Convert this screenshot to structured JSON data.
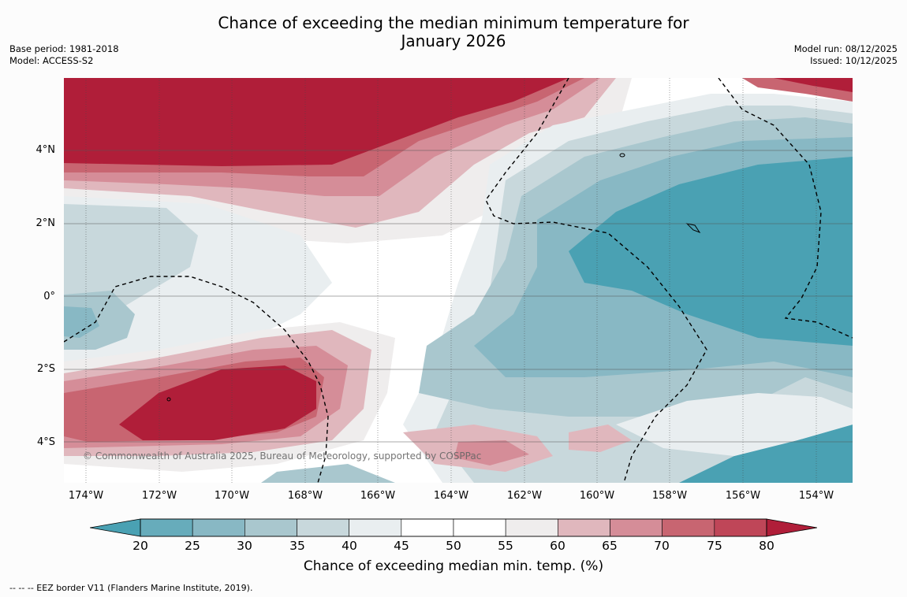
{
  "header": {
    "title_line1": "Chance of exceeding the median minimum temperature for",
    "title_line2": "January 2026",
    "base_period": "Base period: 1981-2018",
    "model": "Model: ACCESS-S2",
    "model_run": "Model run: 08/12/2025",
    "issued": "Issued: 10/12/2025"
  },
  "map": {
    "copyright": "© Commonwealth of Australia 2025, Bureau of Meteorology, supported by COSPPac",
    "lat_labels": [
      "4°N",
      "2°N",
      "0°",
      "2°S",
      "4°S"
    ],
    "lon_labels": [
      "174°W",
      "172°W",
      "170°W",
      "168°W",
      "166°W",
      "164°W",
      "162°W",
      "160°W",
      "158°W",
      "156°W",
      "154°W"
    ]
  },
  "legend": {
    "ticks": [
      "20",
      "25",
      "30",
      "35",
      "40",
      "45",
      "50",
      "55",
      "60",
      "65",
      "70",
      "75",
      "80"
    ],
    "label": "Chance of exceeding median min. temp. (%)",
    "colors": [
      "#4aa1b3",
      "#67acbb",
      "#88b8c4",
      "#a9c7ce",
      "#c8d8dc",
      "#e9eef0",
      "#ffffff",
      "#ffffff",
      "#efeded",
      "#e0b7bd",
      "#d58d98",
      "#c86571",
      "#bf4658",
      "#b01e39"
    ]
  },
  "footer": {
    "eez_note": "--  --  -- EEZ border V11 (Flanders Marine Institute, 2019)."
  }
}
